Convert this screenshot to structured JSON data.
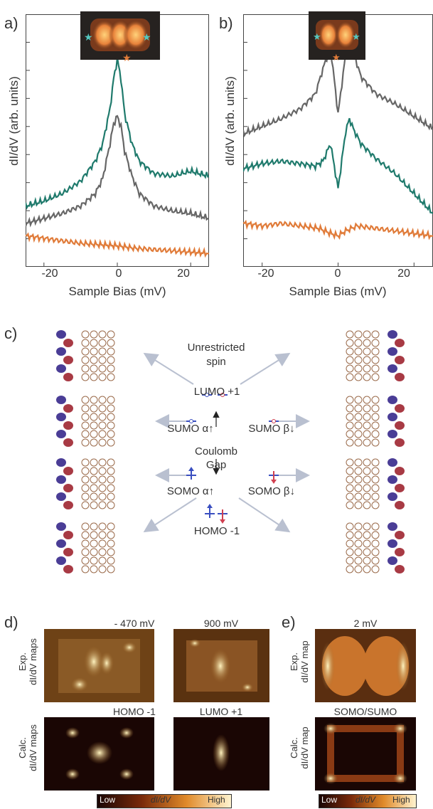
{
  "panels": {
    "a": "a)",
    "b": "b)",
    "c": "c)",
    "d": "d)",
    "e": "e)"
  },
  "axes": {
    "ylabel": "dI/dV (arb. units)",
    "xlabel": "Sample Bias (mV)",
    "ticks": [
      "-20",
      "0",
      "20"
    ]
  },
  "chart_data": [
    {
      "type": "line",
      "panel": "a",
      "xlabel": "Sample Bias (mV)",
      "ylabel": "dI/dV (arb. units)",
      "xlim": [
        -25,
        25
      ],
      "xticks": [
        -20,
        0,
        20
      ],
      "grid": false,
      "series_colors": [
        "#1f7a6c",
        "#666666",
        "#e07b39"
      ],
      "series": [
        {
          "x": [
            -25,
            -20,
            -15,
            -10,
            -6,
            -4,
            -2,
            -1,
            0,
            1,
            2,
            4,
            6,
            10,
            15,
            20,
            25
          ],
          "y": [
            2.1,
            2.3,
            2.6,
            3.1,
            3.9,
            4.6,
            6.0,
            7.2,
            8.0,
            7.2,
            5.8,
            4.6,
            3.9,
            3.4,
            3.3,
            3.5,
            3.3
          ]
        },
        {
          "x": [
            -25,
            -20,
            -15,
            -10,
            -6,
            -4,
            -2,
            -1,
            0,
            1,
            2,
            4,
            6,
            10,
            15,
            20,
            25
          ],
          "y": [
            1.4,
            1.6,
            1.8,
            2.1,
            2.6,
            3.2,
            4.6,
            5.4,
            5.7,
            5.3,
            4.3,
            3.3,
            2.6,
            2.1,
            1.9,
            1.8,
            1.6
          ]
        },
        {
          "x": [
            -25,
            -20,
            -15,
            -10,
            -5,
            0,
            5,
            10,
            15,
            20,
            25
          ],
          "y": [
            0.9,
            0.8,
            0.7,
            0.6,
            0.55,
            0.5,
            0.4,
            0.35,
            0.3,
            0.25,
            0.2
          ]
        }
      ]
    },
    {
      "type": "line",
      "panel": "b",
      "xlabel": "Sample Bias (mV)",
      "ylabel": "dI/dV (arb. units)",
      "xlim": [
        -25,
        25
      ],
      "xticks": [
        -20,
        0,
        20
      ],
      "grid": false,
      "series_colors": [
        "#666666",
        "#1f7a6c",
        "#e07b39"
      ],
      "series": [
        {
          "x": [
            -25,
            -20,
            -15,
            -10,
            -6,
            -4,
            -2,
            0,
            2,
            3,
            4,
            6,
            10,
            15,
            20,
            25
          ],
          "y": [
            5.0,
            5.3,
            5.6,
            6.0,
            6.6,
            7.6,
            8.5,
            5.8,
            8.2,
            8.7,
            8.3,
            7.3,
            6.6,
            6.2,
            5.7,
            5.2
          ]
        },
        {
          "x": [
            -25,
            -20,
            -15,
            -10,
            -6,
            -4,
            -2,
            0,
            2,
            3,
            4,
            6,
            10,
            15,
            20,
            25
          ],
          "y": [
            3.6,
            3.8,
            3.9,
            3.8,
            3.7,
            3.9,
            4.6,
            2.8,
            5.1,
            5.6,
            5.2,
            4.6,
            4.0,
            3.4,
            2.6,
            1.8
          ]
        },
        {
          "x": [
            -25,
            -20,
            -15,
            -10,
            -5,
            -2,
            0,
            2,
            5,
            10,
            15,
            20,
            25
          ],
          "y": [
            1.4,
            1.3,
            1.4,
            1.3,
            1.2,
            1.0,
            0.9,
            1.1,
            1.3,
            1.2,
            1.1,
            1.0,
            0.9
          ]
        }
      ]
    }
  ],
  "diagram": {
    "title_line1": "Unrestricted",
    "title_line2": "spin",
    "lumo": "LUMO +1",
    "sumo_a": "SUMO α↑",
    "sumo_b": "SUMO β↓",
    "coulomb_line1": "Coulomb",
    "coulomb_line2": "Gap",
    "somo_a": "SOMO α↑",
    "somo_b": "SOMO β↓",
    "homo": "HOMO -1"
  },
  "maps": {
    "d_top_left": "- 470 mV",
    "d_top_right": "900 mV",
    "d_bottom_left": "HOMO -1",
    "d_bottom_right": "LUMO +1",
    "e_top": "2 mV",
    "e_bottom": "SOMO/SUMO",
    "exp_maps_line1": "Exp.",
    "exp_maps_line2": "dI/dV maps",
    "calc_maps_line1": "Calc.",
    "calc_maps_line2": "dI/dV maps",
    "exp_map_line1": "Exp.",
    "exp_map_line2": "dI/dV map",
    "calc_map_line1": "Calc.",
    "calc_map_line2": "dI/dV map"
  },
  "colorbar": {
    "low": "Low",
    "mid": "dI/dV",
    "high": "High"
  },
  "colors": {
    "teal": "#1f7a6c",
    "gray": "#666666",
    "orange": "#e07b39",
    "orbital_blue": "#4a3d96",
    "orbital_red": "#a83a44",
    "arrow": "#b9c0d0"
  }
}
